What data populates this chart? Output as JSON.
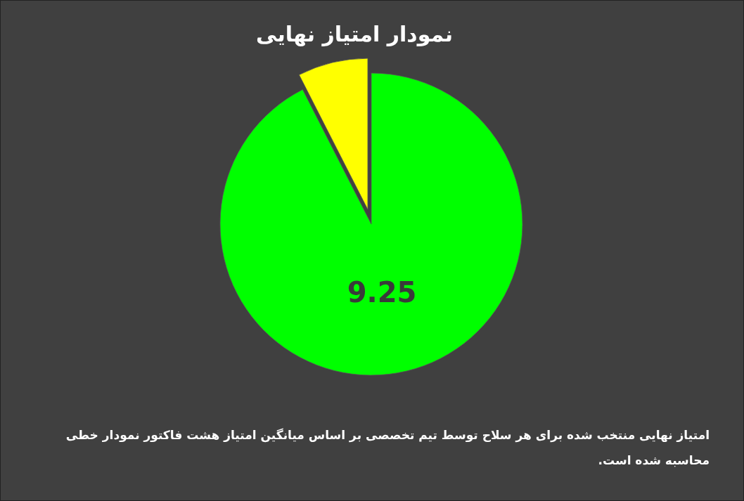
{
  "chart_data": {
    "type": "pie",
    "title": "نمودار امتیاز نهایی",
    "categories": [
      null,
      null
    ],
    "values": [
      9.25,
      0.75
    ],
    "colors": [
      "#00ff00",
      "#ffff00"
    ],
    "value_labels": [
      "9.25",
      null
    ],
    "annotations": [
      "امتیاز نهایی منتخب شده برای هر سلاح توسط تیم تخصصی بر اساس میانگین امتیاز هشت فاکتور نمودار خطی محاسبه شده است."
    ]
  }
}
